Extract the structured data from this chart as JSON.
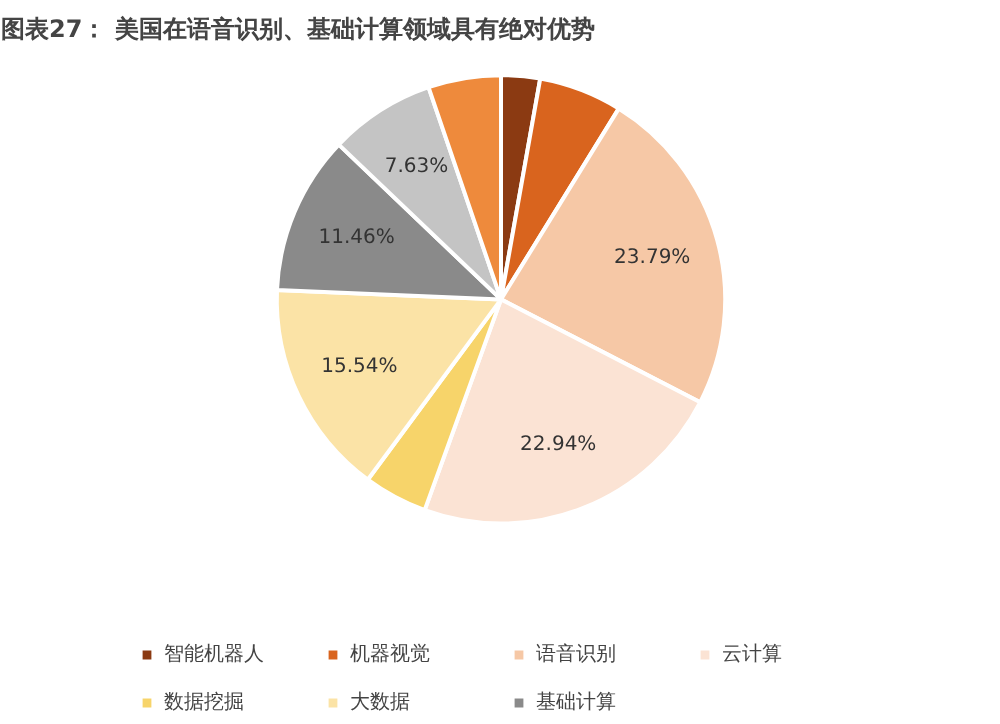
{
  "chart_data": {
    "type": "pie",
    "title": "图表27：  美国在语音识别、基础计算领域具有绝对优势",
    "categories": [
      "智能机器人",
      "机器视觉",
      "语音识别",
      "云计算",
      "数据挖掘",
      "大数据",
      "基础计算",
      null,
      null
    ],
    "values": [
      2.8,
      6.0,
      23.79,
      22.94,
      4.6,
      15.54,
      11.46,
      7.63,
      5.24
    ],
    "colors": [
      "#8b3a12",
      "#d9641e",
      "#f6c8a6",
      "#fbe3d4",
      "#f7d46a",
      "#fbe3a6",
      "#8a8a8a",
      "#c4c4c4",
      "#ee8a3c"
    ],
    "value_labels": [
      null,
      null,
      "23.79%",
      "22.94%",
      null,
      "15.54%",
      "11.46%",
      "7.63%",
      null
    ],
    "legend": "bottom"
  }
}
